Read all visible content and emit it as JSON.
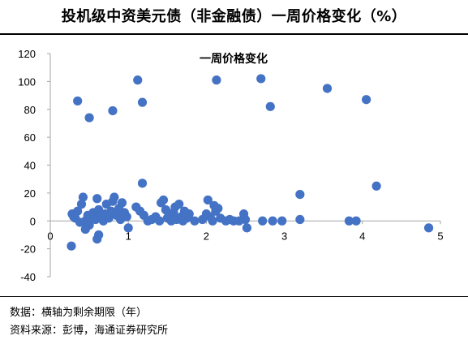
{
  "header": {
    "title": "投机级中资美元债（非金融债）一周价格变化（%）"
  },
  "footer": {
    "note": "数据：横轴为剩余期限（年）",
    "source": "资料来源：彭博，海通证券研究所"
  },
  "chart_data": {
    "type": "scatter",
    "title": "一周价格变化",
    "xlabel": "",
    "ylabel": "",
    "xlim": [
      0,
      5
    ],
    "ylim": [
      -40,
      120
    ],
    "xticks": [
      0,
      1,
      2,
      3,
      4,
      5
    ],
    "yticks": [
      -40,
      -20,
      0,
      20,
      40,
      60,
      80,
      100,
      120
    ],
    "grid": false,
    "legend": "none",
    "marker_color": "#4472C4",
    "series": [
      {
        "points": [
          [
            0.35,
            86
          ],
          [
            0.5,
            74
          ],
          [
            0.8,
            79
          ],
          [
            1.12,
            101
          ],
          [
            1.18,
            85
          ],
          [
            1.18,
            27
          ],
          [
            2.13,
            101
          ],
          [
            2.7,
            102
          ],
          [
            2.82,
            82
          ],
          [
            3.55,
            95
          ],
          [
            4.05,
            87
          ],
          [
            4.18,
            25
          ],
          [
            3.2,
            19
          ],
          [
            4.85,
            -5
          ],
          [
            0.27,
            -18
          ],
          [
            0.6,
            -13
          ],
          [
            0.62,
            -10
          ],
          [
            0.45,
            -6
          ],
          [
            1.0,
            -5
          ],
          [
            0.28,
            5
          ],
          [
            0.3,
            3
          ],
          [
            0.32,
            2
          ],
          [
            0.35,
            7
          ],
          [
            0.38,
            -1
          ],
          [
            0.4,
            12
          ],
          [
            0.42,
            17
          ],
          [
            0.45,
            0
          ],
          [
            0.48,
            4
          ],
          [
            0.5,
            -3
          ],
          [
            0.52,
            2
          ],
          [
            0.55,
            6
          ],
          [
            0.58,
            1
          ],
          [
            0.6,
            16
          ],
          [
            0.62,
            8
          ],
          [
            0.65,
            3
          ],
          [
            0.68,
            0
          ],
          [
            0.7,
            5
          ],
          [
            0.72,
            12
          ],
          [
            0.75,
            2
          ],
          [
            0.78,
            7
          ],
          [
            0.8,
            14
          ],
          [
            0.82,
            17
          ],
          [
            0.85,
            4
          ],
          [
            0.88,
            9
          ],
          [
            0.9,
            1
          ],
          [
            0.92,
            13
          ],
          [
            0.95,
            6
          ],
          [
            0.98,
            3
          ],
          [
            1.1,
            10
          ],
          [
            1.15,
            7
          ],
          [
            1.2,
            4
          ],
          [
            1.25,
            0
          ],
          [
            1.3,
            1
          ],
          [
            1.35,
            3
          ],
          [
            1.4,
            0
          ],
          [
            1.42,
            13
          ],
          [
            1.45,
            15
          ],
          [
            1.48,
            8
          ],
          [
            1.5,
            2
          ],
          [
            1.52,
            4
          ],
          [
            1.55,
            0
          ],
          [
            1.58,
            6
          ],
          [
            1.6,
            10
          ],
          [
            1.62,
            1
          ],
          [
            1.65,
            12
          ],
          [
            1.68,
            3
          ],
          [
            1.7,
            0
          ],
          [
            1.72,
            7
          ],
          [
            1.75,
            2
          ],
          [
            1.78,
            5
          ],
          [
            1.85,
            0
          ],
          [
            1.95,
            1
          ],
          [
            2.0,
            5
          ],
          [
            2.02,
            15
          ],
          [
            2.05,
            3
          ],
          [
            2.08,
            0
          ],
          [
            2.1,
            11
          ],
          [
            2.12,
            7
          ],
          [
            2.15,
            9
          ],
          [
            2.18,
            2
          ],
          [
            2.25,
            0
          ],
          [
            2.3,
            1
          ],
          [
            2.35,
            0
          ],
          [
            2.42,
            0
          ],
          [
            2.48,
            5
          ],
          [
            2.5,
            1
          ],
          [
            2.52,
            -5
          ],
          [
            2.72,
            0
          ],
          [
            2.85,
            0
          ],
          [
            2.97,
            0
          ],
          [
            3.2,
            1
          ],
          [
            3.83,
            0
          ],
          [
            3.92,
            0
          ]
        ]
      }
    ]
  }
}
